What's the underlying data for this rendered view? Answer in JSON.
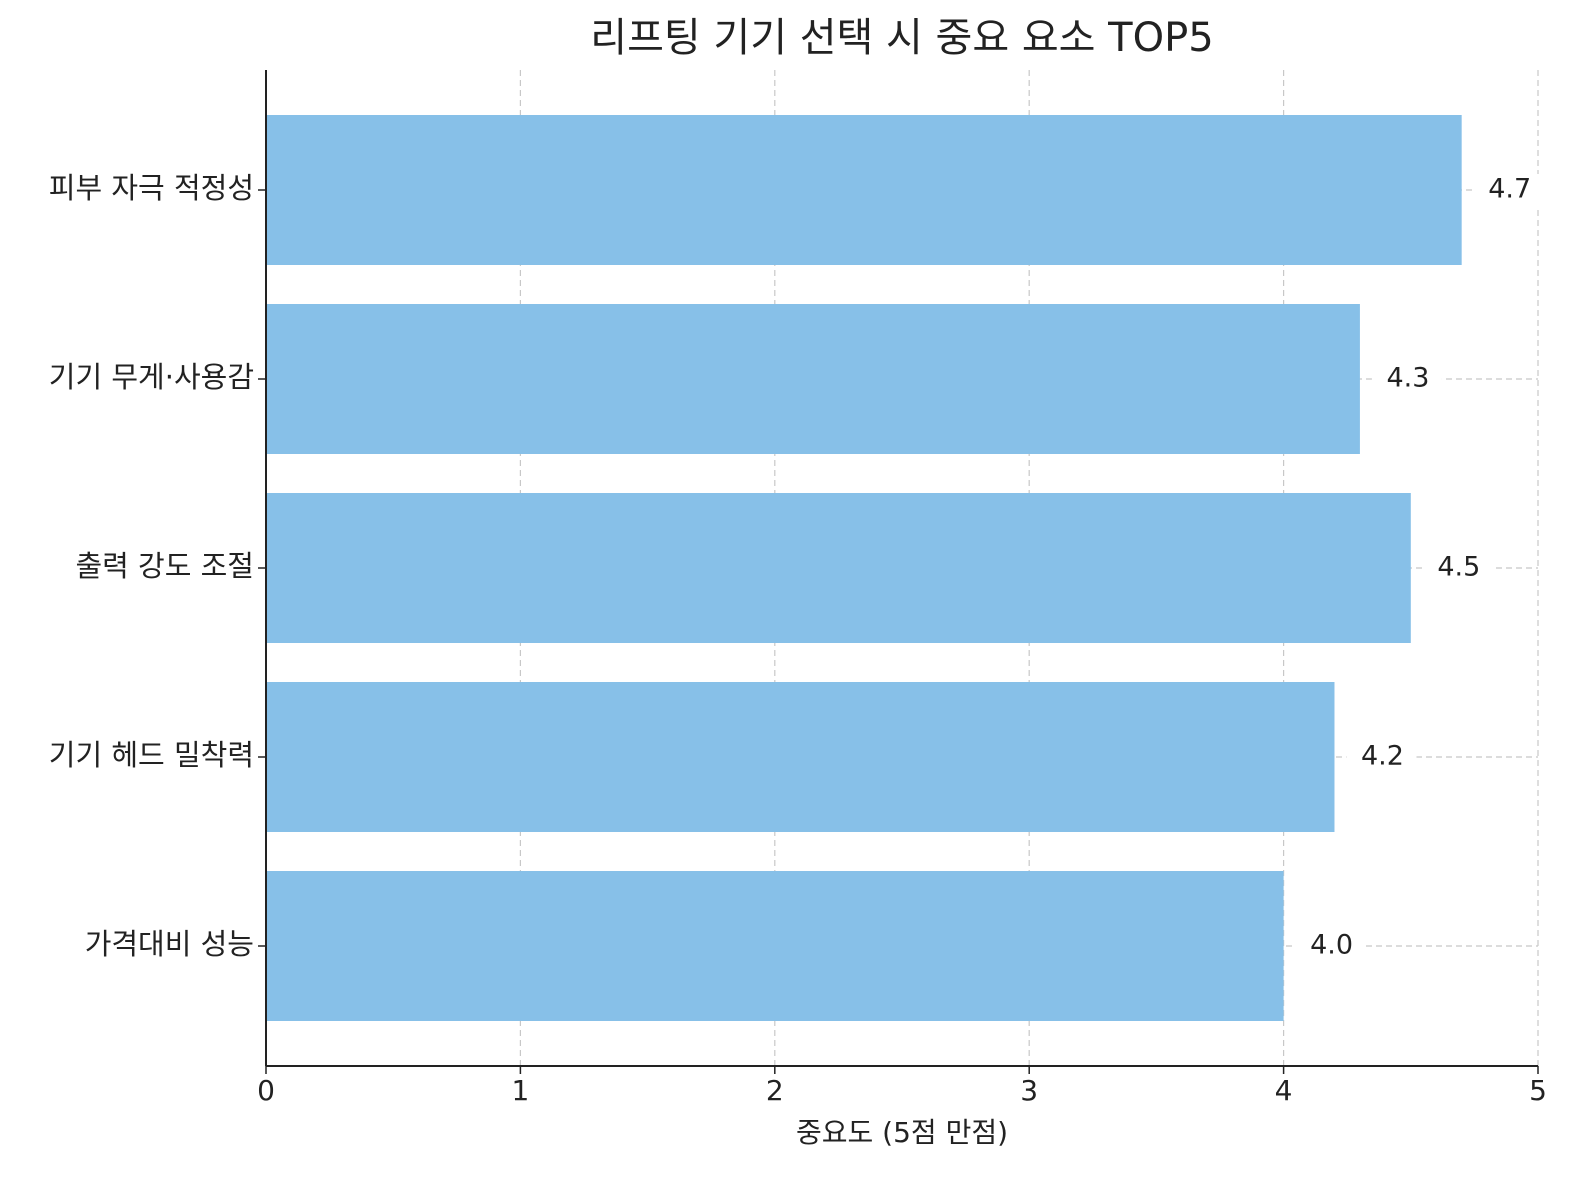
{
  "chart_data": {
    "type": "barh",
    "title": "리프팅 기기 선택 시 중요 요소 TOP5",
    "xlabel": "중요도 (5점 만점)",
    "categories": [
      "피부 자극 적정성",
      "기기 무게·사용감",
      "출력 강도 조절",
      "기기 헤드 밀착력",
      "가격대비 성능"
    ],
    "values": [
      4.7,
      4.3,
      4.5,
      4.2,
      4.0
    ],
    "value_labels": [
      "4.7",
      "4.3",
      "4.5",
      "4.2",
      "4.0"
    ],
    "color": "#87c0e8",
    "xlim": [
      0,
      5
    ],
    "xticks": [
      0,
      1,
      2,
      3,
      4,
      5
    ],
    "grid": true
  }
}
